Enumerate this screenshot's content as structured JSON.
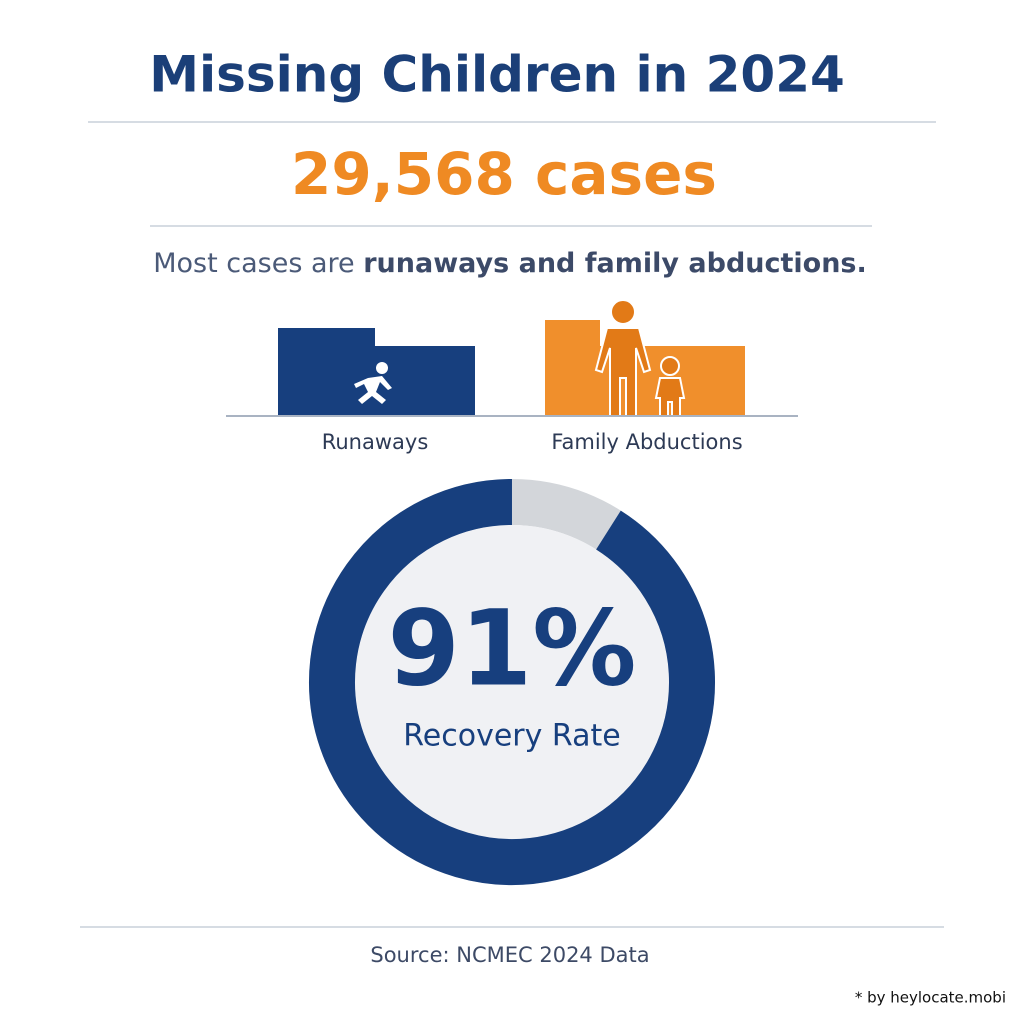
{
  "header": {
    "title": "Missing Children in 2024",
    "headline": "29,568 cases"
  },
  "subtitle": {
    "lead": "Most cases are ",
    "emphasis": "runaways and family abductions."
  },
  "categories": {
    "first": "Runaways",
    "second": "Family Abductions"
  },
  "recovery": {
    "value": 91,
    "label": "91%",
    "caption": "Recovery Rate"
  },
  "footer": {
    "source": "Source: NCMEC 2024 Data",
    "credit": "* by heylocate.mobi"
  }
}
